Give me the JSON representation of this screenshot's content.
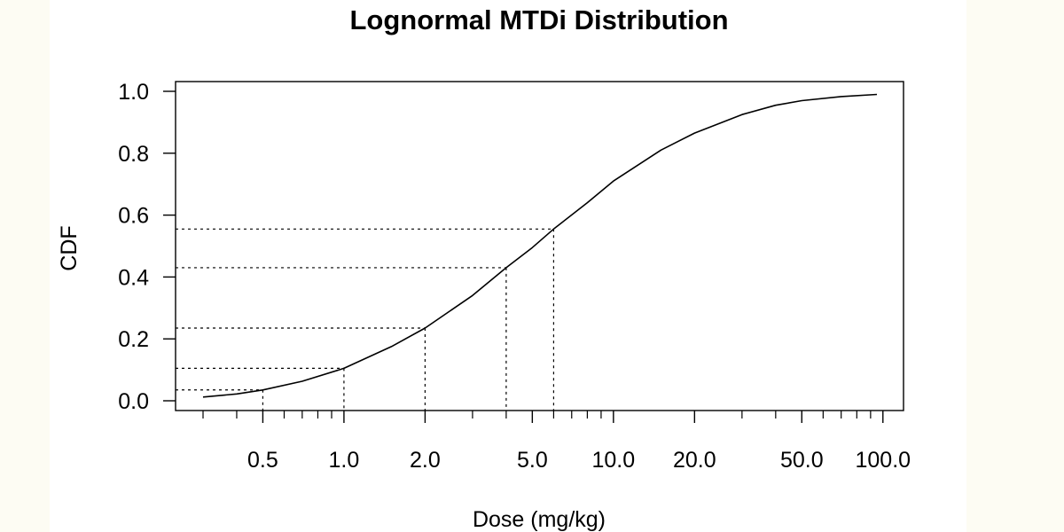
{
  "chart_data": {
    "type": "line",
    "title": "Lognormal MTDi Distribution",
    "xlabel": "Dose (mg/kg)",
    "ylabel": "CDF",
    "x_scale": "log",
    "xlim": [
      0.25,
      100
    ],
    "ylim": [
      0,
      1
    ],
    "x_ticks": [
      0.5,
      1.0,
      2.0,
      5.0,
      10.0,
      20.0,
      50.0,
      100.0
    ],
    "x_tick_labels": [
      "0.5",
      "1.0",
      "2.0",
      "5.0",
      "10.0",
      "20.0",
      "50.0",
      "100.0"
    ],
    "y_ticks": [
      0.0,
      0.2,
      0.4,
      0.6,
      0.8,
      1.0
    ],
    "y_tick_labels": [
      "0.0",
      "0.2",
      "0.4",
      "0.6",
      "0.8",
      "1.0"
    ],
    "grid": false,
    "series": [
      {
        "x": [
          0.3,
          0.4,
          0.5,
          0.7,
          1.0,
          1.5,
          2.0,
          3.0,
          4.0,
          5.0,
          6.0,
          8.0,
          10.0,
          15.0,
          20.0,
          30.0,
          40.0,
          50.0,
          70.0,
          95.0
        ],
        "y": [
          0.012,
          0.022,
          0.035,
          0.063,
          0.105,
          0.175,
          0.235,
          0.34,
          0.43,
          0.495,
          0.555,
          0.64,
          0.71,
          0.81,
          0.865,
          0.925,
          0.955,
          0.97,
          0.983,
          0.99
        ]
      }
    ],
    "reference_points": [
      {
        "x": 0.5,
        "y": 0.035
      },
      {
        "x": 1.0,
        "y": 0.105
      },
      {
        "x": 2.0,
        "y": 0.235
      },
      {
        "x": 4.0,
        "y": 0.43
      },
      {
        "x": 6.0,
        "y": 0.555
      }
    ],
    "line_color": "#000000"
  }
}
